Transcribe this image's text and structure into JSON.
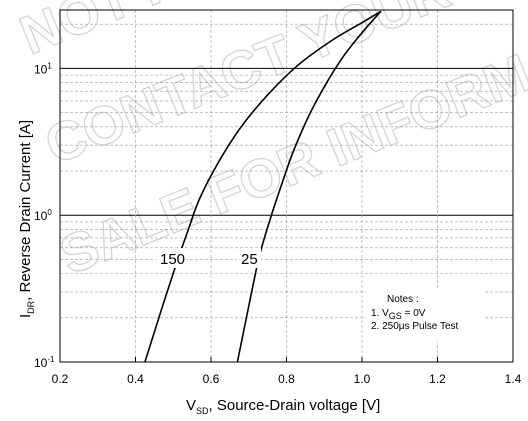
{
  "chart_data": {
    "type": "line",
    "xlabel": {
      "main": "V",
      "sub": "SD",
      "rest": ", Source-Drain voltage [V]"
    },
    "ylabel": {
      "main": "I",
      "sub": "DR",
      "rest": ", Reverse Drain Current [A]"
    },
    "xlim": [
      0.2,
      1.4
    ],
    "ylim": [
      0.1,
      25
    ],
    "yscale": "log",
    "grid": "minor dashed, major solid at decades",
    "x_ticks": [
      0.2,
      0.4,
      0.6,
      0.8,
      1.0,
      1.2,
      1.4
    ],
    "x_tick_labels": [
      "0.2",
      "0.4",
      "0.6",
      "0.8",
      "1.0",
      "1.2",
      "1.4"
    ],
    "y_ticks": [
      {
        "base": "10",
        "exp": "-1",
        "value": 0.1
      },
      {
        "base": "10",
        "exp": "0",
        "value": 1
      },
      {
        "base": "10",
        "exp": "1",
        "value": 10
      }
    ],
    "series": [
      {
        "name": "150",
        "x": [
          0.425,
          0.45,
          0.48,
          0.51,
          0.54,
          0.57,
          0.62,
          0.68,
          0.75,
          0.83,
          0.92,
          1.0,
          1.05
        ],
        "y": [
          0.1,
          0.16,
          0.28,
          0.48,
          0.8,
          1.3,
          2.3,
          4.0,
          6.6,
          10.5,
          15.5,
          20.5,
          24.5
        ]
      },
      {
        "name": "25",
        "x": [
          0.67,
          0.69,
          0.71,
          0.73,
          0.76,
          0.79,
          0.82,
          0.86,
          0.9,
          0.95,
          1.0,
          1.05
        ],
        "y": [
          0.1,
          0.18,
          0.32,
          0.55,
          1.0,
          1.7,
          2.8,
          4.8,
          7.5,
          12.0,
          17.5,
          24.5
        ]
      }
    ],
    "notes": {
      "title": "Notes :",
      "line1_prefix": "1. V",
      "line1_sub": "GS",
      "line1_rest": " = 0V",
      "line2": "2. 250μs Pulse Test"
    },
    "watermark": [
      "NOT RECOMMENDED",
      "CONTACT YOUR ON SEMI",
      "SALE FOR INFORMATION"
    ]
  }
}
